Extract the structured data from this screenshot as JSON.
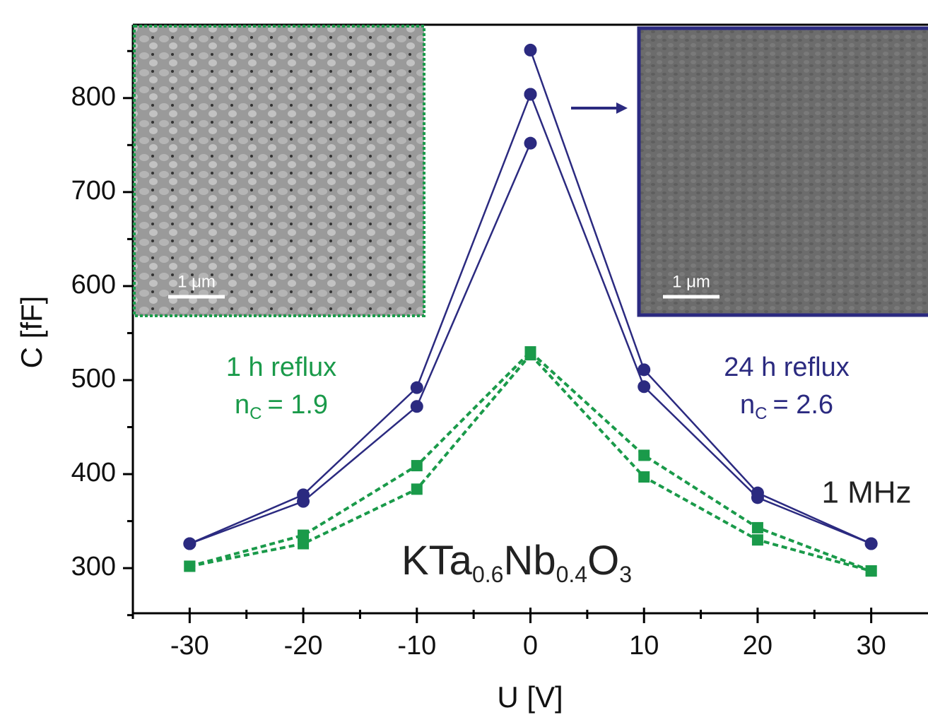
{
  "chart_data": {
    "type": "line",
    "xlabel": "U [V]",
    "ylabel": "C [fF]",
    "xlim": [
      -35,
      35
    ],
    "ylim": [
      252,
      878
    ],
    "xticks": [
      -30,
      -20,
      -10,
      0,
      10,
      20,
      30
    ],
    "yticks": [
      300,
      400,
      500,
      600,
      700,
      800
    ],
    "xminorticks": [
      -35,
      -25,
      -15,
      -5,
      5,
      15,
      25
    ],
    "yminorticks": [
      250,
      350,
      450,
      550,
      650,
      750,
      850
    ],
    "series": [
      {
        "color": "#2b2a80",
        "marker": "circle",
        "linestyle": "solid",
        "x": [
          -30,
          -20,
          -10,
          0
        ],
        "values": [
          326,
          378,
          492,
          804
        ]
      },
      {
        "color": "#2b2a80",
        "marker": "circle",
        "linestyle": "solid",
        "x": [
          -30,
          -20,
          -10,
          0
        ],
        "values": [
          326,
          371,
          472,
          752
        ]
      },
      {
        "color": "#2b2a80",
        "marker": "circle",
        "linestyle": "solid",
        "x": [
          0,
          10,
          20,
          30
        ],
        "values": [
          851,
          511,
          380,
          326
        ]
      },
      {
        "color": "#2b2a80",
        "marker": "circle",
        "linestyle": "solid",
        "x": [
          0,
          10,
          20,
          30
        ],
        "values": [
          804,
          493,
          375,
          326
        ]
      },
      {
        "color": "#1a9a4a",
        "marker": "square",
        "linestyle": "dashed",
        "x": [
          -30,
          -20,
          -10,
          0
        ],
        "values": [
          302,
          335,
          409,
          530
        ]
      },
      {
        "color": "#1a9a4a",
        "marker": "square",
        "linestyle": "dashed",
        "x": [
          -30,
          -20,
          -10,
          0
        ],
        "values": [
          302,
          326,
          384,
          527
        ]
      },
      {
        "color": "#1a9a4a",
        "marker": "square",
        "linestyle": "dashed",
        "x": [
          0,
          10,
          20,
          30
        ],
        "values": [
          530,
          420,
          343,
          297
        ]
      },
      {
        "color": "#1a9a4a",
        "marker": "square",
        "linestyle": "dashed",
        "x": [
          0,
          10,
          20,
          30
        ],
        "values": [
          527,
          397,
          330,
          297
        ]
      }
    ],
    "annotations": {
      "green_label": "1 h reflux",
      "green_n": "n",
      "green_n_sub": "C",
      "green_n_value": "= 1.9",
      "blue_label": "24 h reflux",
      "blue_n": "n",
      "blue_n_sub": "C",
      "blue_n_value": "= 2.6",
      "frequency": "1 MHz",
      "formula": [
        "KTa",
        "0.6",
        "Nb",
        "0.4",
        "O",
        "3"
      ],
      "scale_left": "1 μm",
      "scale_right": "1 μm"
    }
  }
}
